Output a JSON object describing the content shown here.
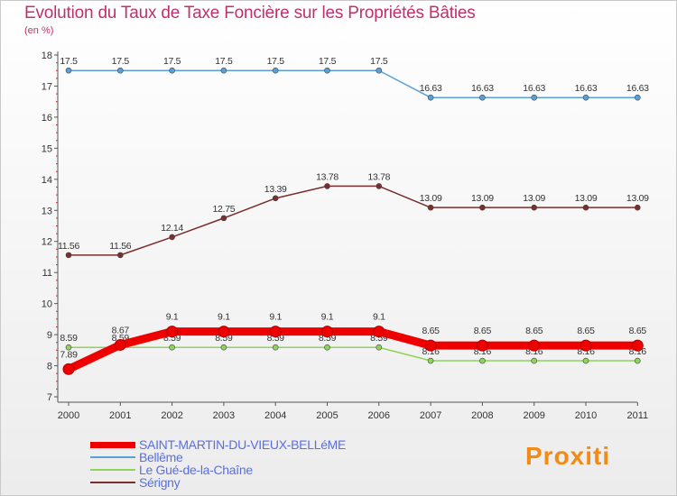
{
  "header": {
    "title": "Evolution du Taux de Taxe Foncière sur les Propriétés Bâties",
    "unit": "(en %)"
  },
  "logo": {
    "text": "Proxiti"
  },
  "chart_data": {
    "type": "line",
    "title": "Evolution du Taux de Taxe Foncière sur les Propriétés Bâties",
    "ylabel": "(en %)",
    "xlabel": "",
    "ylim": [
      7,
      18
    ],
    "yticks": [
      7,
      8,
      9,
      10,
      11,
      12,
      13,
      14,
      15,
      16,
      17,
      18
    ],
    "x": [
      "2000",
      "2001",
      "2002",
      "2003",
      "2004",
      "2005",
      "2006",
      "2007",
      "2008",
      "2009",
      "2010",
      "2011"
    ],
    "grid": false,
    "series": [
      {
        "name": "Bellême",
        "color": "#5aa0d8",
        "values": [
          17.5,
          17.5,
          17.5,
          17.5,
          17.5,
          17.5,
          17.5,
          16.63,
          16.63,
          16.63,
          16.63,
          16.63
        ],
        "labels": [
          "17.5",
          "17.5",
          "17.5",
          "17.5",
          "17.5",
          "17.5",
          "17.5",
          "16.63",
          "16.63",
          "16.63",
          "16.63",
          "16.63"
        ]
      },
      {
        "name": "Sérigny",
        "color": "#7a2e2e",
        "values": [
          11.56,
          11.56,
          12.14,
          12.75,
          13.39,
          13.78,
          13.78,
          13.09,
          13.09,
          13.09,
          13.09,
          13.09
        ],
        "labels": [
          "11.56",
          "11.56",
          "12.14",
          "12.75",
          "13.39",
          "13.78",
          "13.78",
          "13.09",
          "13.09",
          "13.09",
          "13.09",
          "13.09"
        ]
      },
      {
        "name": "Le Gué-de-la-Chaîne",
        "color": "#8ed35a",
        "values": [
          8.59,
          8.59,
          8.59,
          8.59,
          8.59,
          8.59,
          8.59,
          8.16,
          8.16,
          8.16,
          8.16,
          8.16
        ],
        "labels": [
          "8.59",
          "8.59",
          "8.59",
          "8.59",
          "8.59",
          "8.59",
          "8.59",
          "8.16",
          "8.16",
          "8.16",
          "8.16",
          "8.16"
        ]
      },
      {
        "name": "SAINT-MARTIN-DU-VIEUX-BELLéME",
        "color": "#ee0000",
        "values": [
          7.89,
          8.67,
          9.1,
          9.1,
          9.1,
          9.1,
          9.1,
          8.65,
          8.65,
          8.65,
          8.65,
          8.65
        ],
        "labels": [
          "7.89",
          "8.67",
          "9.1",
          "9.1",
          "9.1",
          "9.1",
          "9.1",
          "8.65",
          "8.65",
          "8.65",
          "8.65",
          "8.65"
        ]
      }
    ],
    "legend": [
      "SAINT-MARTIN-DU-VIEUX-BELLéME",
      "Bellême",
      "Le Gué-de-la-Chaîne",
      "Sérigny"
    ]
  }
}
